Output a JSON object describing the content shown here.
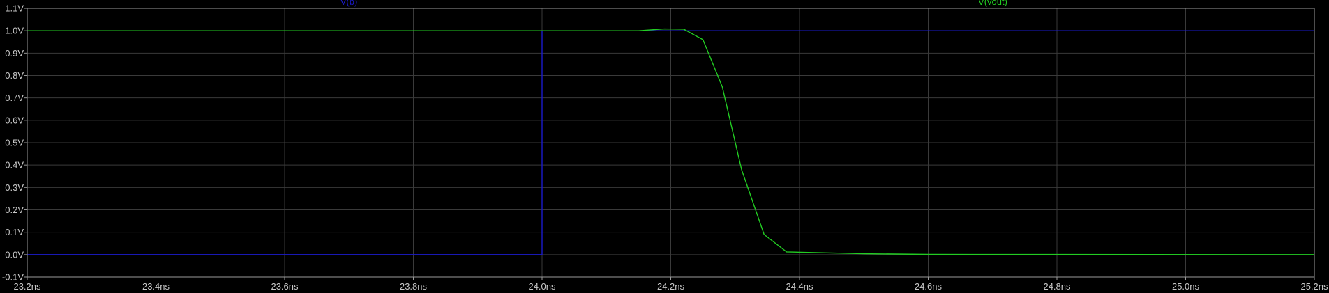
{
  "chart_data": {
    "type": "line",
    "title": "",
    "xlabel": "",
    "ylabel": "",
    "x_unit": "ns",
    "y_unit": "V",
    "xlim": [
      23.2,
      25.2
    ],
    "ylim": [
      -0.1,
      1.1
    ],
    "x_ticks": [
      "23.2ns",
      "23.4ns",
      "23.6ns",
      "23.8ns",
      "24.0ns",
      "24.2ns",
      "24.4ns",
      "24.6ns",
      "24.8ns",
      "25.0ns",
      "25.2ns"
    ],
    "y_ticks": [
      "1.1V",
      "1.0V",
      "0.9V",
      "0.8V",
      "0.7V",
      "0.6V",
      "0.5V",
      "0.4V",
      "0.3V",
      "0.2V",
      "0.1V",
      "0.0V",
      "-0.1V"
    ],
    "grid": true,
    "series": [
      {
        "name": "V(b)",
        "color": "#1a1acc",
        "points": [
          [
            23.2,
            0.0
          ],
          [
            24.0,
            0.0
          ],
          [
            24.0,
            1.0
          ],
          [
            25.2,
            1.0
          ]
        ]
      },
      {
        "name": "V(vout)",
        "color": "#22cc22",
        "points": [
          [
            23.2,
            1.0
          ],
          [
            24.15,
            1.0
          ],
          [
            24.19,
            1.008
          ],
          [
            24.22,
            1.007
          ],
          [
            24.25,
            0.96
          ],
          [
            24.28,
            0.75
          ],
          [
            24.31,
            0.38
          ],
          [
            24.345,
            0.09
          ],
          [
            24.38,
            0.012
          ],
          [
            24.5,
            0.004
          ],
          [
            24.6,
            0.001
          ],
          [
            25.2,
            0.0
          ]
        ]
      }
    ]
  }
}
